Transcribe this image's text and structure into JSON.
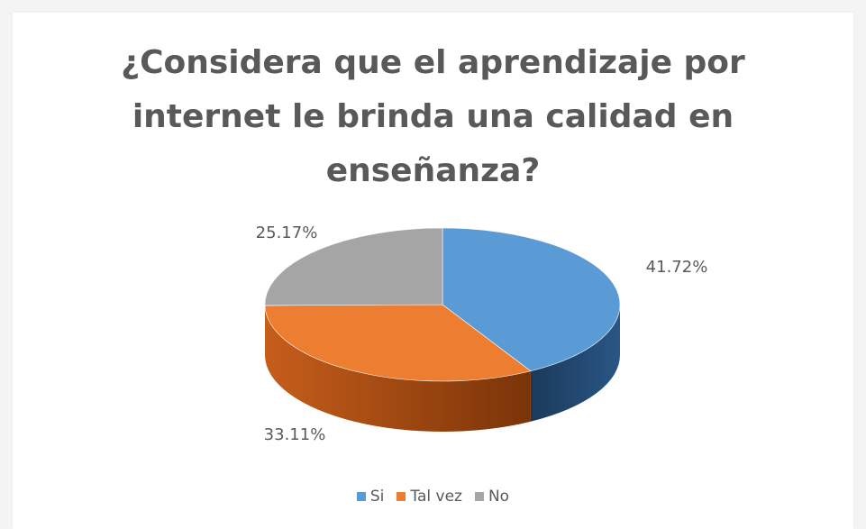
{
  "chart_data": {
    "type": "pie",
    "title_lines": [
      "¿Considera que el aprendizaje por",
      "internet le brinda una calidad en",
      "enseñanza?"
    ],
    "slices": [
      {
        "label": "Si",
        "value": 41.72,
        "value_label": "41.72%",
        "color": "#5b9bd5",
        "side_color": "#1f3d5f"
      },
      {
        "label": "Tal vez",
        "value": 33.11,
        "value_label": "33.11%",
        "color": "#ed7d31",
        "side_color": "#a84d12"
      },
      {
        "label": "No",
        "value": 25.17,
        "value_label": "25.17%",
        "color": "#a5a5a5",
        "side_color": "#6e6e6e"
      }
    ],
    "legend_position": "bottom",
    "style": "3d-pie"
  }
}
